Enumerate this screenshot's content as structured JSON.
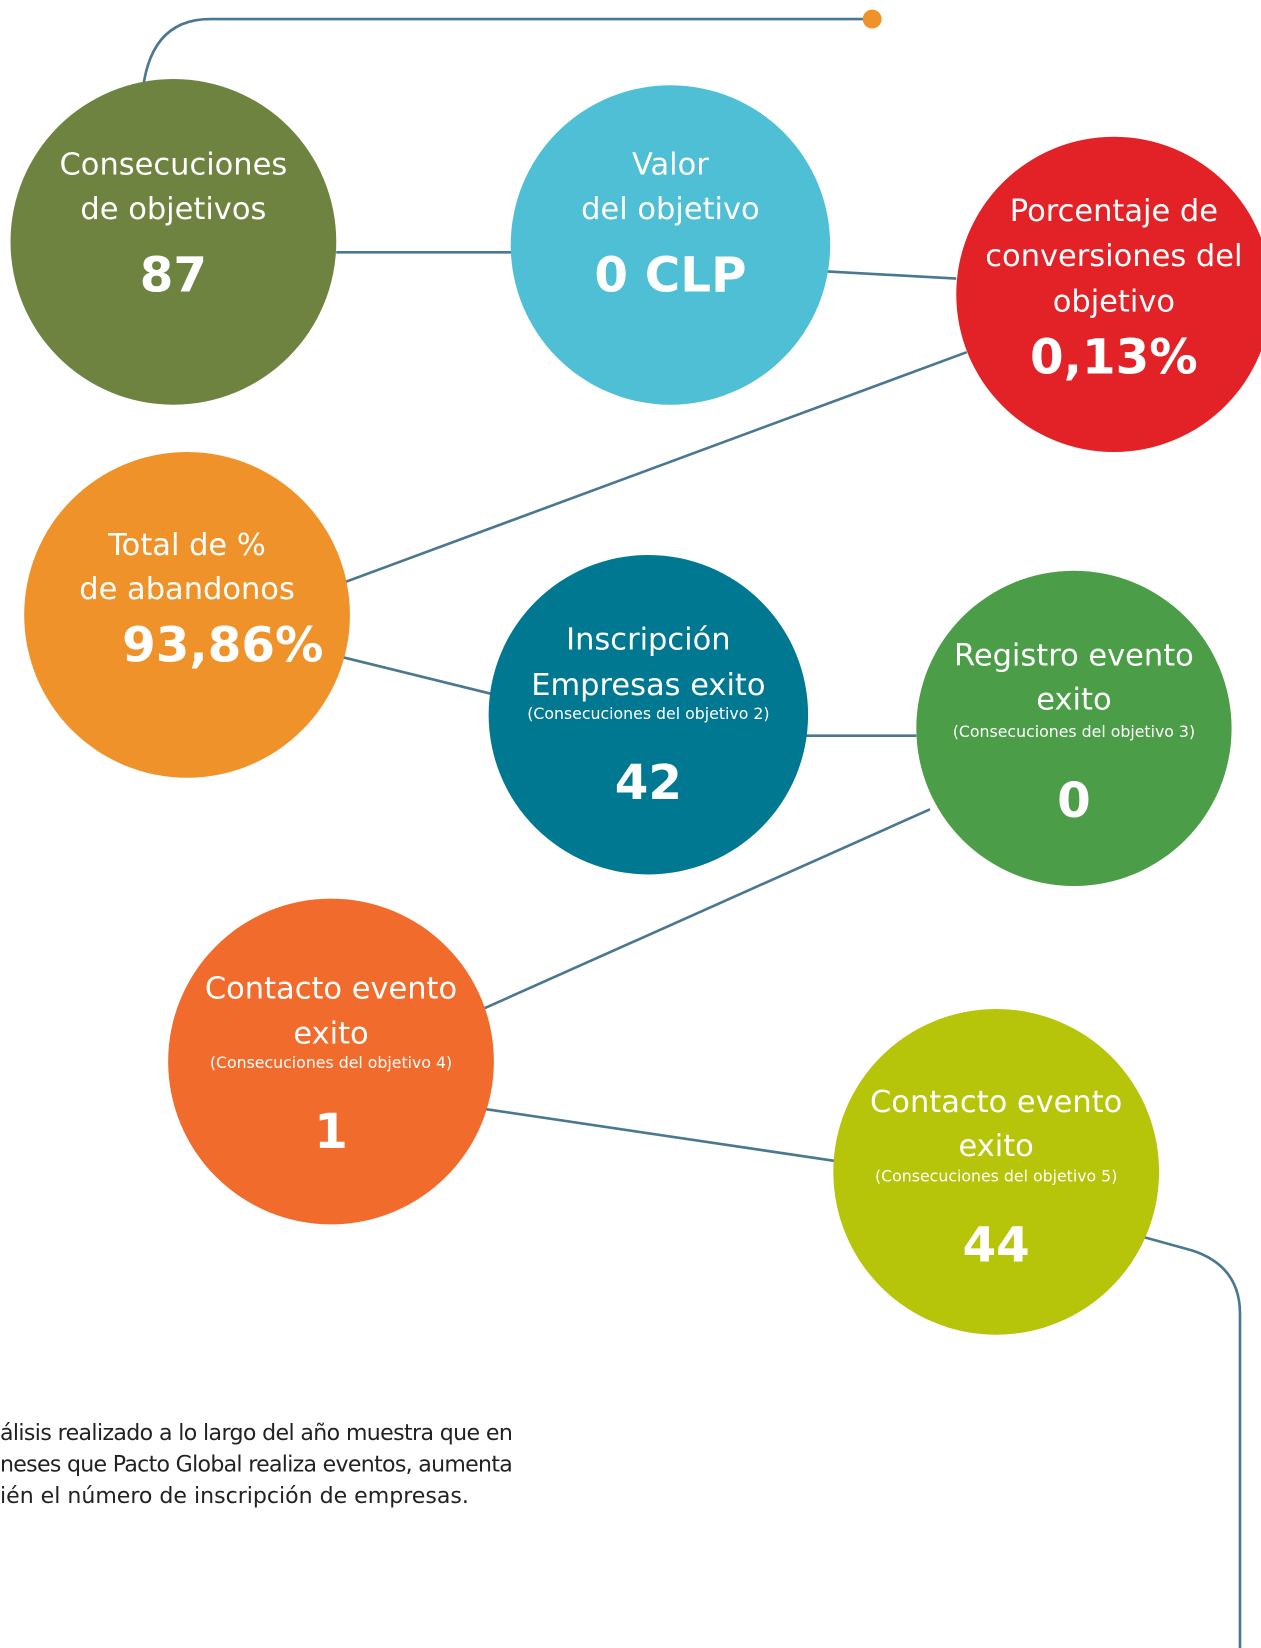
{
  "nodes": [
    {
      "lines": [
        "Consecuciones",
        "de objetivos"
      ],
      "value": "87"
    },
    {
      "lines": [
        "Valor",
        "del objetivo"
      ],
      "value": "0 CLP"
    },
    {
      "lines": [
        "Porcentaje de",
        "conversiones del",
        "objetivo"
      ],
      "value": "0,13%"
    },
    {
      "lines": [
        "Total de %",
        "de abandonos"
      ],
      "value": "93,86%"
    },
    {
      "lines": [
        "Inscripción",
        "Empresas exito"
      ],
      "sublabel": "(Consecuciones del objetivo 2)",
      "value": "42"
    },
    {
      "lines": [
        "Registro evento",
        "exito"
      ],
      "sublabel": "(Consecuciones del objetivo 3)",
      "value": "0"
    },
    {
      "lines": [
        "Contacto evento",
        "exito"
      ],
      "sublabel": "(Consecuciones del objetivo 4)",
      "value": "1"
    },
    {
      "lines": [
        "Contacto evento",
        "exito"
      ],
      "sublabel": "(Consecuciones del objetivo 5)",
      "value": "44"
    }
  ],
  "paragraph": {
    "lines": [
      "álisis realizado a lo largo del año muestra que en",
      "neses que Pacto Global realiza eventos, aumenta",
      "ién el número de inscripción de empresas."
    ]
  }
}
